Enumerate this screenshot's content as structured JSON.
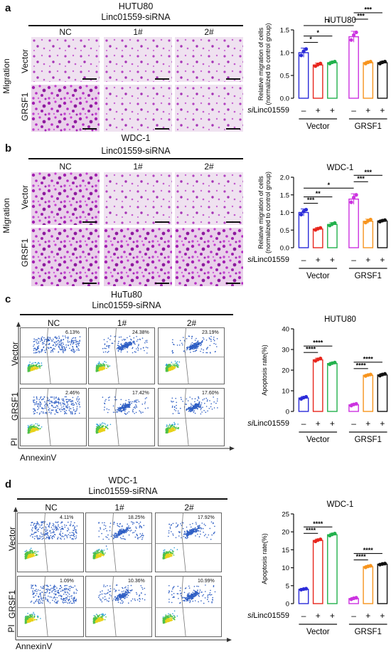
{
  "panels": {
    "a": {
      "label": "a",
      "cell_line": "HUTU80",
      "treatment": "Linc01559-siRNA",
      "columns": [
        "NC",
        "1#",
        "2#"
      ],
      "rows": [
        "Vector",
        "GRSF1"
      ],
      "assay": "Migration"
    },
    "b": {
      "label": "b",
      "cell_line": "WDC-1",
      "treatment": "Linc01559-siRNA",
      "columns": [
        "NC",
        "1#",
        "2#"
      ],
      "rows": [
        "Vector",
        "GRSF1"
      ],
      "assay": "Migration"
    },
    "c": {
      "label": "c",
      "cell_line": "HuTu80",
      "treatment": "Linc01559-siRNA",
      "columns": [
        "NC",
        "1#",
        "2#"
      ],
      "rows": [
        "Vector",
        "GRSF1"
      ],
      "y_axis": "PI",
      "x_axis": "AnnexinV",
      "percent": [
        [
          "6.13%",
          "24.38%",
          "23.19%"
        ],
        [
          "2.46%",
          "17.42%",
          "17.60%"
        ]
      ]
    },
    "d": {
      "label": "d",
      "cell_line": "WDC-1",
      "treatment": "Linc01559-siRNA",
      "columns": [
        "NC",
        "1#",
        "2#"
      ],
      "rows": [
        "Vector",
        "GRSF1"
      ],
      "y_axis": "PI",
      "x_axis": "AnnexinV",
      "percent": [
        [
          "4.11%",
          "18.25%",
          "17.92%"
        ],
        [
          "1.09%",
          "10.36%",
          "10.99%"
        ]
      ]
    }
  },
  "sirna_label": "siLinc01559",
  "sirna_signs": [
    "–",
    "+",
    "+",
    "–",
    "+",
    "+"
  ],
  "group_labels": [
    "Vector",
    "GRSF1"
  ],
  "bar_colors": [
    "#2b2bd9",
    "#e8261d",
    "#22b14c",
    "#cc33e0",
    "#f7941d",
    "#111111"
  ],
  "chart_data": [
    {
      "type": "bar",
      "title": "HUTU80",
      "ylabel": "Relative migration of cells (normalized to control group)",
      "ylim": [
        0,
        1.5
      ],
      "yticks": [
        "0.0",
        "0.5",
        "1.0",
        "1.5"
      ],
      "categories": [
        "Vector NC",
        "Vector 1#",
        "Vector 2#",
        "GRSF1 NC",
        "GRSF1 1#",
        "GRSF1 2#"
      ],
      "values": [
        1.0,
        0.73,
        0.78,
        1.35,
        0.78,
        0.78
      ],
      "errors": [
        0.1,
        0.04,
        0.03,
        0.12,
        0.03,
        0.03
      ],
      "significance": [
        {
          "from": 0,
          "to": 1,
          "label": "*"
        },
        {
          "from": 0,
          "to": 2,
          "label": "*"
        },
        {
          "from": 0,
          "to": 3,
          "label": "*"
        },
        {
          "from": 3,
          "to": 4,
          "label": "***"
        },
        {
          "from": 3,
          "to": 5,
          "label": "***"
        }
      ]
    },
    {
      "type": "bar",
      "title": "WDC-1",
      "ylabel": "Relative migration of cells (normalized to control group)",
      "ylim": [
        0,
        2.0
      ],
      "yticks": [
        "0.0",
        "0.5",
        "1.0",
        "1.5",
        "2.0"
      ],
      "categories": [
        "Vector NC",
        "Vector 1#",
        "Vector 2#",
        "GRSF1 NC",
        "GRSF1 1#",
        "GRSF1 2#"
      ],
      "values": [
        1.0,
        0.53,
        0.66,
        1.38,
        0.75,
        0.76
      ],
      "errors": [
        0.1,
        0.04,
        0.05,
        0.15,
        0.06,
        0.03
      ],
      "significance": [
        {
          "from": 0,
          "to": 1,
          "label": "***"
        },
        {
          "from": 0,
          "to": 2,
          "label": "**"
        },
        {
          "from": 0,
          "to": 3,
          "label": "*"
        },
        {
          "from": 3,
          "to": 4,
          "label": "***"
        },
        {
          "from": 3,
          "to": 5,
          "label": "***"
        }
      ]
    },
    {
      "type": "bar",
      "title": "HUTU80",
      "ylabel": "Apoptosis rate(%)",
      "ylim": [
        0,
        40
      ],
      "yticks": [
        "0",
        "10",
        "20",
        "30",
        "40"
      ],
      "categories": [
        "Vector NC",
        "Vector 1#",
        "Vector 2#",
        "GRSF1 NC",
        "GRSF1 1#",
        "GRSF1 2#"
      ],
      "values": [
        6.5,
        25.0,
        23.2,
        3.2,
        17.5,
        17.7
      ],
      "errors": [
        0.7,
        0.8,
        0.6,
        0.6,
        0.5,
        0.6
      ],
      "significance": [
        {
          "from": 0,
          "to": 1,
          "label": "****"
        },
        {
          "from": 0,
          "to": 2,
          "label": "****"
        },
        {
          "from": 3,
          "to": 4,
          "label": "****"
        },
        {
          "from": 3,
          "to": 5,
          "label": "****"
        }
      ]
    },
    {
      "type": "bar",
      "title": "WDC-1",
      "ylabel": "Apoptosis rate(%)",
      "ylim": [
        0,
        25
      ],
      "yticks": [
        "0",
        "5",
        "10",
        "15",
        "20",
        "25"
      ],
      "categories": [
        "Vector NC",
        "Vector 1#",
        "Vector 2#",
        "GRSF1 NC",
        "GRSF1 1#",
        "GRSF1 2#"
      ],
      "values": [
        4.0,
        17.6,
        19.2,
        1.4,
        10.3,
        11.0
      ],
      "errors": [
        0.2,
        0.4,
        0.4,
        0.3,
        0.3,
        0.2
      ],
      "significance": [
        {
          "from": 0,
          "to": 1,
          "label": "****"
        },
        {
          "from": 0,
          "to": 2,
          "label": "****"
        },
        {
          "from": 3,
          "to": 4,
          "label": "****"
        },
        {
          "from": 3,
          "to": 5,
          "label": "****"
        }
      ]
    }
  ]
}
